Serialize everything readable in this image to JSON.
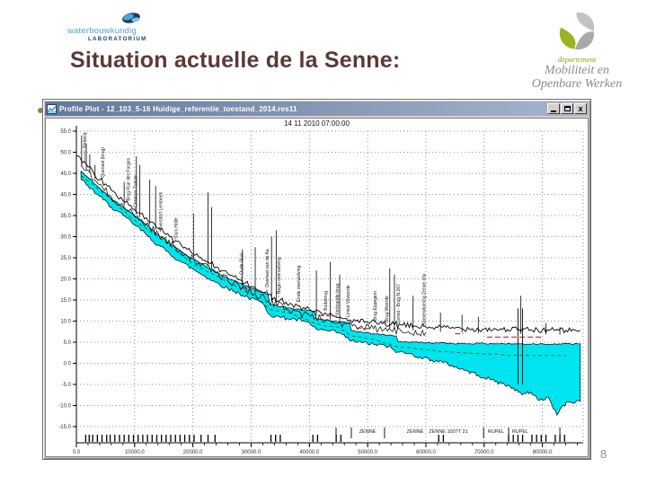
{
  "slide": {
    "title": "Situation actuelle de la Senne:",
    "page_number": "8"
  },
  "logo_left": {
    "line1": "waterbouwkundig",
    "line2": "LABORATORIUM"
  },
  "logo_right": {
    "dept": "departement",
    "line1": "Mobiliteit en",
    "line2": "Openbare Werken"
  },
  "app_window": {
    "title": "Profile Plot - 12_103_5-16 Huidige_referentie_toestand_2014.res11",
    "controls": [
      "minimize",
      "maximize",
      "close"
    ]
  },
  "chart_data": {
    "type": "area",
    "title": "14 11 2010 07:00:00",
    "xlabel": "",
    "ylabel": "",
    "xlim": [
      0,
      87000
    ],
    "x_ticks": [
      0,
      10000,
      20000,
      30000,
      40000,
      50000,
      60000,
      70000,
      80000
    ],
    "x_minor_step": 2000,
    "y_ticks": [
      55,
      50,
      45,
      40,
      35,
      30,
      25,
      20,
      15,
      10,
      5,
      0,
      -5,
      -10,
      -15
    ],
    "grid": true,
    "legend": "none",
    "colors": {
      "grid": "#4a7ab5",
      "water": "#00e4f0",
      "bank": "#000000",
      "green_line": "#007700",
      "red_line": "#cc2222",
      "axis": "#000000",
      "tick_label": "#333333"
    },
    "series": {
      "bank_top": [
        [
          0,
          49
        ],
        [
          1000,
          47.5
        ],
        [
          2000,
          46.5
        ],
        [
          3000,
          45
        ],
        [
          4000,
          43.5
        ],
        [
          5000,
          42.5
        ],
        [
          6000,
          41
        ],
        [
          7000,
          39.5
        ],
        [
          8000,
          38.5
        ],
        [
          9000,
          37.5
        ],
        [
          10000,
          36.5
        ],
        [
          11000,
          35.5
        ],
        [
          12000,
          34.5
        ],
        [
          13000,
          33.5
        ],
        [
          14000,
          32
        ],
        [
          15000,
          31
        ],
        [
          16000,
          30
        ],
        [
          17000,
          29
        ],
        [
          18000,
          28
        ],
        [
          19000,
          27
        ],
        [
          20000,
          26
        ],
        [
          21000,
          25.2
        ],
        [
          22000,
          24.4
        ],
        [
          23000,
          23.6
        ],
        [
          24000,
          22.8
        ],
        [
          25000,
          22
        ],
        [
          26000,
          21.2
        ],
        [
          27000,
          20.5
        ],
        [
          28000,
          19.8
        ],
        [
          29000,
          19
        ],
        [
          30000,
          18.2
        ],
        [
          31000,
          17.4
        ],
        [
          32000,
          16.8
        ],
        [
          33000,
          16.2
        ],
        [
          34000,
          15.6
        ],
        [
          35000,
          15
        ],
        [
          36000,
          14.5
        ],
        [
          37000,
          14
        ],
        [
          38000,
          13.6
        ],
        [
          39000,
          13.2
        ],
        [
          40000,
          12.8
        ],
        [
          41000,
          12.4
        ],
        [
          42000,
          12
        ],
        [
          43000,
          11.6
        ],
        [
          44000,
          11.2
        ],
        [
          45000,
          10.9
        ],
        [
          46000,
          10.6
        ],
        [
          47000,
          10.3
        ],
        [
          48000,
          10
        ],
        [
          50000,
          9.7
        ],
        [
          52000,
          9.4
        ],
        [
          54000,
          9.2
        ],
        [
          56000,
          9
        ],
        [
          58000,
          8.8
        ],
        [
          60000,
          8.6
        ],
        [
          62000,
          8.5
        ],
        [
          64000,
          8.4
        ],
        [
          66000,
          8.3
        ],
        [
          68000,
          8.2
        ],
        [
          70000,
          8.1
        ],
        [
          72000,
          8.1
        ],
        [
          74000,
          8
        ],
        [
          76000,
          8
        ],
        [
          78000,
          7.9
        ],
        [
          80000,
          7.9
        ],
        [
          82000,
          7.8
        ],
        [
          84000,
          7.8
        ],
        [
          86500,
          7.8
        ]
      ],
      "bank_2": [
        [
          800,
          47
        ],
        [
          3000,
          43.5
        ],
        [
          6000,
          39.5
        ],
        [
          9000,
          36
        ],
        [
          12000,
          33
        ],
        [
          15000,
          29.5
        ],
        [
          18000,
          26.5
        ],
        [
          21000,
          23.8
        ],
        [
          24000,
          21.4
        ],
        [
          27000,
          19
        ],
        [
          30000,
          16.8
        ],
        [
          33000,
          14.8
        ],
        [
          36000,
          13
        ],
        [
          39000,
          11.7
        ],
        [
          42000,
          10.5
        ],
        [
          45000,
          9.5
        ],
        [
          48000,
          8.7
        ],
        [
          51000,
          8.2
        ],
        [
          54000,
          7.8
        ],
        [
          57000,
          7.5
        ],
        [
          60000,
          7.3
        ]
      ],
      "water_surface": [
        [
          800,
          45.5
        ],
        [
          2000,
          44
        ],
        [
          4000,
          41.5
        ],
        [
          6000,
          39
        ],
        [
          8000,
          37
        ],
        [
          10000,
          35
        ],
        [
          12000,
          33
        ],
        [
          14000,
          30.5
        ],
        [
          16000,
          28.5
        ],
        [
          18000,
          26.5
        ],
        [
          20000,
          24.8
        ],
        [
          22000,
          23.2
        ],
        [
          24000,
          21.6
        ],
        [
          26000,
          20.2
        ],
        [
          28000,
          19
        ],
        [
          30000,
          17.8
        ],
        [
          32000,
          16.8
        ],
        [
          32900,
          16.3
        ],
        [
          33200,
          14
        ],
        [
          35000,
          13.4
        ],
        [
          37000,
          13
        ],
        [
          39000,
          12.6
        ],
        [
          40900,
          12.3
        ],
        [
          41200,
          10.6
        ],
        [
          43000,
          10.2
        ],
        [
          45000,
          9.8
        ],
        [
          46900,
          9.5
        ],
        [
          47200,
          7.8
        ],
        [
          49000,
          7.4
        ],
        [
          51000,
          7
        ],
        [
          53000,
          6.7
        ],
        [
          54900,
          6.5
        ],
        [
          55200,
          5.2
        ],
        [
          58000,
          5
        ],
        [
          62000,
          4.8
        ],
        [
          66000,
          4.7
        ],
        [
          70000,
          4.7
        ],
        [
          75000,
          4.6
        ],
        [
          80000,
          4.6
        ],
        [
          86500,
          4.6
        ]
      ],
      "bed": [
        [
          800,
          43.5
        ],
        [
          2000,
          42
        ],
        [
          4000,
          39.5
        ],
        [
          6000,
          37
        ],
        [
          8000,
          35
        ],
        [
          10000,
          32.8
        ],
        [
          12000,
          30.5
        ],
        [
          14000,
          28
        ],
        [
          16000,
          26
        ],
        [
          18000,
          24
        ],
        [
          20000,
          22.3
        ],
        [
          22000,
          20.7
        ],
        [
          24000,
          19.1
        ],
        [
          26000,
          17.7
        ],
        [
          28000,
          16.5
        ],
        [
          30000,
          15.3
        ],
        [
          32000,
          14.3
        ],
        [
          33200,
          11.5
        ],
        [
          35000,
          10.9
        ],
        [
          37000,
          10.5
        ],
        [
          39000,
          10.1
        ],
        [
          41200,
          8.1
        ],
        [
          43000,
          7.7
        ],
        [
          45000,
          7.3
        ],
        [
          47200,
          5.3
        ],
        [
          49000,
          4.9
        ],
        [
          51000,
          4.5
        ],
        [
          53000,
          4.2
        ],
        [
          55200,
          2.7
        ],
        [
          57000,
          2.3
        ],
        [
          59000,
          1.5
        ],
        [
          61000,
          0.8
        ],
        [
          63000,
          0.2
        ],
        [
          65000,
          -0.8
        ],
        [
          67000,
          -1.8
        ],
        [
          69000,
          -2.8
        ],
        [
          71000,
          -3.8
        ],
        [
          73000,
          -4.8
        ],
        [
          75000,
          -5.8
        ],
        [
          76500,
          -7.5
        ],
        [
          78000,
          -6.8
        ],
        [
          79500,
          -8.8
        ],
        [
          81000,
          -8
        ],
        [
          82500,
          -12.3
        ],
        [
          83500,
          -10
        ],
        [
          84500,
          -9.2
        ],
        [
          86500,
          -9
        ]
      ],
      "green_line": [
        [
          800,
          44.5
        ],
        [
          5000,
          40
        ],
        [
          10000,
          33.8
        ],
        [
          15000,
          29
        ],
        [
          20000,
          23.5
        ],
        [
          25000,
          20
        ],
        [
          30000,
          16.5
        ],
        [
          33200,
          12.8
        ],
        [
          37000,
          11.8
        ],
        [
          41200,
          9.3
        ],
        [
          45000,
          8.5
        ],
        [
          47200,
          6.5
        ],
        [
          51000,
          5.7
        ],
        [
          55200,
          3.9
        ],
        [
          60000,
          3.2
        ],
        [
          65000,
          2.6
        ],
        [
          70000,
          2.2
        ],
        [
          75000,
          1.9
        ],
        [
          80000,
          1.8
        ],
        [
          84000,
          1.8
        ]
      ]
    },
    "red_segments": [
      [
        [
          28200,
          17.8
        ],
        [
          30200,
          17.6
        ]
      ],
      [
        [
          41500,
          11.4
        ],
        [
          43500,
          11.2
        ]
      ],
      [
        [
          48000,
          8.4
        ],
        [
          50500,
          8.2
        ]
      ],
      [
        [
          65000,
          7
        ],
        [
          66500,
          7
        ]
      ],
      [
        [
          70500,
          6.2
        ],
        [
          80200,
          6.2
        ]
      ]
    ],
    "spikes": [
      [
        900,
        54
      ],
      [
        1700,
        52
      ],
      [
        2300,
        49.5
      ],
      [
        3200,
        47
      ],
      [
        8200,
        43
      ],
      [
        10300,
        49
      ],
      [
        10900,
        47
      ],
      [
        12600,
        43.5
      ],
      [
        13600,
        42
      ],
      [
        20100,
        35.5
      ],
      [
        22600,
        40.5
      ],
      [
        23200,
        37
      ],
      [
        28500,
        27
      ],
      [
        30700,
        27.5
      ],
      [
        33500,
        30
      ],
      [
        34300,
        31.5
      ],
      [
        41200,
        22
      ],
      [
        43600,
        24
      ],
      [
        45200,
        21
      ],
      [
        53800,
        22.5
      ],
      [
        54600,
        21
      ],
      [
        57800,
        16
      ],
      [
        62500,
        12
      ],
      [
        66200,
        11.5
      ],
      [
        69000,
        11
      ],
      [
        76300,
        16
      ],
      [
        80600,
        9.5
      ],
      [
        83000,
        8.5
      ]
    ],
    "gauges": [
      [
        75800,
        -5,
        13
      ],
      [
        76600,
        -5,
        13
      ]
    ],
    "station_labels": [
      {
        "d": 1400,
        "v": 51,
        "label": "Rebecq"
      },
      {
        "d": 4450,
        "v": 44,
        "label": "Quenast (brug)"
      },
      {
        "d": 8900,
        "v": 38.5,
        "label": "Brug Rue des Forges"
      },
      {
        "d": 10100,
        "v": 37,
        "label": "Centrum Tubize"
      },
      {
        "d": 14450,
        "v": 31.5,
        "label": "Overstort Lembeek"
      },
      {
        "d": 17060,
        "v": 29.5,
        "label": "Sluis Halle"
      },
      {
        "d": 28300,
        "v": 21,
        "label": "Oude Sluis"
      },
      {
        "d": 32700,
        "v": 18,
        "label": "Overlaat van de Aa"
      },
      {
        "d": 34700,
        "v": 16.5,
        "label": "Begin overwelving"
      },
      {
        "d": 38100,
        "v": 14.5,
        "label": "Einde overwelving"
      },
      {
        "d": 42700,
        "v": 12.5,
        "label": "Budabrug"
      },
      {
        "d": 44700,
        "v": 11.5,
        "label": "Verbrande brug"
      },
      {
        "d": 46600,
        "v": 11,
        "label": "Limiet Vilvoorde"
      },
      {
        "d": 51200,
        "v": 10,
        "label": "Brug Eppegem"
      },
      {
        "d": 53200,
        "v": 9.8,
        "label": "Brug Weerde"
      },
      {
        "d": 55200,
        "v": 9.5,
        "label": "Zemst - Brug N.267"
      },
      {
        "d": 59600,
        "v": 9,
        "label": "Samenvloeiing Zenne afw"
      }
    ],
    "reach_labels": [
      {
        "d": 49980,
        "label": "ZENNE"
      },
      {
        "d": 58155,
        "label": "ZENNE"
      },
      {
        "d": 63861,
        "label": "ZENNE 1007T 21"
      },
      {
        "d": 72037,
        "label": "RUPEL"
      },
      {
        "d": 76202,
        "label": "RUPEL"
      }
    ],
    "reach_separators": [
      44580,
      47200,
      52900,
      69900,
      74200,
      83000
    ],
    "section_marks": [
      1600,
      2200,
      2800,
      3600,
      4400,
      5200,
      5800,
      6600,
      7400,
      8200,
      9000,
      9800,
      10600,
      11400,
      12200,
      13000,
      13800,
      14600,
      15400,
      16200,
      17000,
      17800,
      18600,
      19400,
      20200,
      21400,
      22600,
      23800,
      33400,
      34200,
      35000,
      40600,
      41400,
      44600,
      45400,
      62200,
      63000,
      74200,
      75000,
      75800,
      76600,
      78200,
      79000,
      79800,
      80600,
      82200,
      83000,
      83800
    ]
  }
}
